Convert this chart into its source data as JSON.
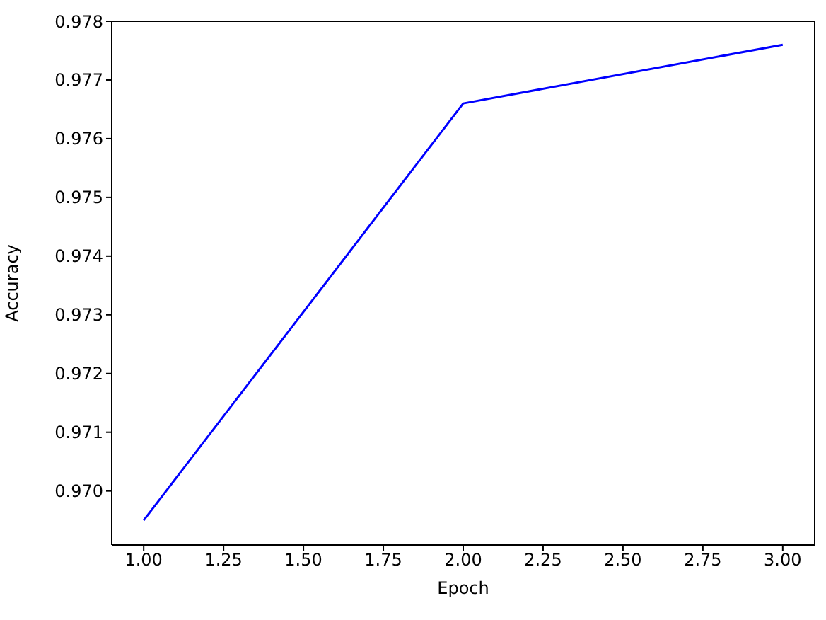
{
  "chart_data": {
    "type": "line",
    "xlabel": "Epoch",
    "ylabel": "Accuracy",
    "x": [
      1,
      2,
      3
    ],
    "series": [
      {
        "color": "#0000ff",
        "values": [
          0.9695,
          0.9766,
          0.9776
        ]
      }
    ],
    "xlim": [
      0.9,
      3.1
    ],
    "xticks": [
      {
        "value": 1,
        "label": "1.00"
      },
      {
        "value": 1.25,
        "label": "1.25"
      },
      {
        "value": 1.5,
        "label": "1.50"
      },
      {
        "value": 1.75,
        "label": "1.75"
      },
      {
        "value": 2,
        "label": "2.00"
      },
      {
        "value": 2.25,
        "label": "2.25"
      },
      {
        "value": 2.5,
        "label": "2.50"
      },
      {
        "value": 2.75,
        "label": "2.75"
      },
      {
        "value": 3,
        "label": "3.00"
      }
    ],
    "ylim": [
      0.96908,
      0.978
    ],
    "yticks": [
      {
        "value": 0.97,
        "label": "0.970"
      },
      0.971,
      0.972,
      0.973,
      0.974,
      0.975,
      0.976,
      0.977,
      {
        "value": 0.978,
        "label": "0.978"
      }
    ],
    "marker": "none",
    "line_style": "solid"
  }
}
